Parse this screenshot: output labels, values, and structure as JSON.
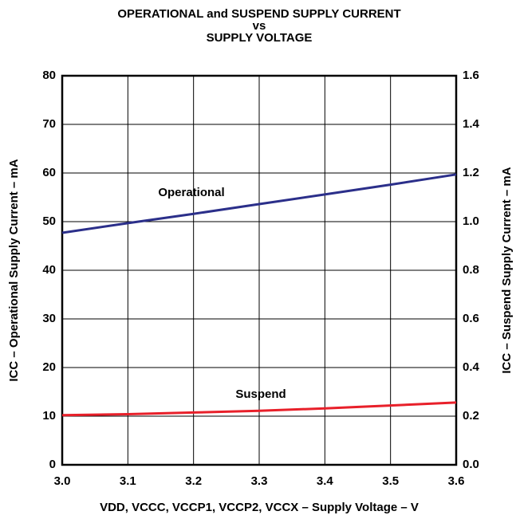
{
  "chart_data": {
    "type": "line",
    "title": [
      "OPERATIONAL and SUSPEND SUPPLY CURRENT",
      "vs",
      "SUPPLY VOLTAGE"
    ],
    "x_label": "VDD, VCCC, VCCP1, VCCP2, VCCX – Supply Voltage – V",
    "y_label": "ICC – Operational Supply Current – mA",
    "y2_label": "ICC – Suspend Supply Current – mA",
    "x": [
      3.0,
      3.1,
      3.2,
      3.3,
      3.4,
      3.5,
      3.6
    ],
    "series": [
      {
        "name": "Operational",
        "color": "#2b2f8a",
        "values": [
          47.7,
          49.7,
          51.6,
          53.6,
          55.6,
          57.6,
          59.7
        ]
      },
      {
        "name": "Suspend",
        "color": "#e8202a",
        "axis": "y2",
        "values": [
          0.204,
          0.208,
          0.215,
          0.222,
          0.232,
          0.244,
          0.256
        ]
      }
    ],
    "xlim": [
      3.0,
      3.6
    ],
    "xticks": [
      {
        "value": 3,
        "label": "3.0"
      },
      3.1,
      3.2,
      3.3,
      3.4,
      3.5,
      3.6
    ],
    "ylim": [
      0,
      80
    ],
    "yticks": [
      0,
      10,
      20,
      30,
      40,
      50,
      60,
      70,
      80
    ],
    "y2lim": [
      0,
      1.6
    ],
    "y2ticks": [
      {
        "value": 0,
        "label": "0.0"
      },
      0.2,
      0.4,
      0.6,
      0.8,
      {
        "value": 1,
        "label": "1.0"
      },
      1.2,
      1.4,
      1.6
    ],
    "grid": true
  }
}
